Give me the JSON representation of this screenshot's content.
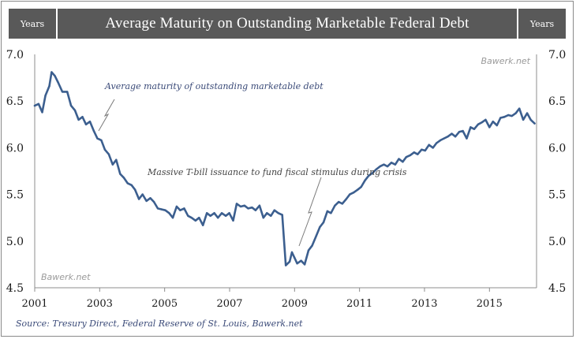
{
  "header": {
    "title": "Average Maturity on Outstanding Marketable Federal Debt",
    "left_unit": "Years",
    "right_unit": "Years"
  },
  "watermark": "Bawerk.net",
  "source": "Source: Tresury Direct, Federal Reserve of St. Louis, Bawerk.net",
  "chart_data": {
    "type": "line",
    "title": "Average Maturity on Outstanding Marketable Federal Debt",
    "ylabel": "Years",
    "ylim": [
      4.5,
      7.0
    ],
    "xlim": [
      2001.0,
      2016.45
    ],
    "yticks": [
      "4.5",
      "5.0",
      "5.5",
      "6.0",
      "6.5",
      "7.0"
    ],
    "xticks": [
      "2001",
      "2003",
      "2005",
      "2007",
      "2009",
      "2011",
      "2013",
      "2015"
    ],
    "grid": false,
    "series": [
      {
        "name": "Average maturity of outstanding marketable debt",
        "color": "#3c5f8f",
        "x": [
          2001.0,
          2001.12,
          2001.23,
          2001.33,
          2001.45,
          2001.52,
          2001.62,
          2001.72,
          2001.85,
          2002.0,
          2002.12,
          2002.24,
          2002.35,
          2002.47,
          2002.58,
          2002.7,
          2002.82,
          2002.93,
          2003.05,
          2003.16,
          2003.28,
          2003.4,
          2003.51,
          2003.63,
          2003.74,
          2003.86,
          2003.98,
          2004.09,
          2004.21,
          2004.32,
          2004.44,
          2004.56,
          2004.67,
          2004.79,
          2004.9,
          2005.02,
          2005.14,
          2005.25,
          2005.37,
          2005.48,
          2005.6,
          2005.72,
          2005.83,
          2005.95,
          2006.06,
          2006.18,
          2006.3,
          2006.41,
          2006.53,
          2006.64,
          2006.76,
          2006.88,
          2006.99,
          2007.11,
          2007.22,
          2007.34,
          2007.46,
          2007.57,
          2007.69,
          2007.8,
          2007.92,
          2008.04,
          2008.15,
          2008.27,
          2008.38,
          2008.5,
          2008.62,
          2008.73,
          2008.85,
          2008.92,
          2009.0,
          2009.08,
          2009.2,
          2009.31,
          2009.43,
          2009.54,
          2009.66,
          2009.78,
          2009.89,
          2010.01,
          2010.12,
          2010.24,
          2010.36,
          2010.47,
          2010.59,
          2010.7,
          2010.82,
          2010.94,
          2011.05,
          2011.17,
          2011.28,
          2011.4,
          2011.52,
          2011.63,
          2011.75,
          2011.86,
          2011.98,
          2012.1,
          2012.21,
          2012.33,
          2012.44,
          2012.56,
          2012.68,
          2012.79,
          2012.91,
          2013.02,
          2013.14,
          2013.26,
          2013.37,
          2013.49,
          2013.6,
          2013.72,
          2013.84,
          2013.95,
          2014.07,
          2014.18,
          2014.3,
          2014.42,
          2014.53,
          2014.65,
          2014.76,
          2014.88,
          2015.0,
          2015.11,
          2015.23,
          2015.34,
          2015.46,
          2015.58,
          2015.69,
          2015.81,
          2015.92,
          2016.04,
          2016.16,
          2016.27,
          2016.39
        ],
        "values": [
          6.45,
          6.47,
          6.38,
          6.56,
          6.66,
          6.81,
          6.77,
          6.7,
          6.6,
          6.6,
          6.45,
          6.4,
          6.3,
          6.33,
          6.25,
          6.28,
          6.18,
          6.1,
          6.08,
          5.98,
          5.93,
          5.82,
          5.87,
          5.72,
          5.68,
          5.62,
          5.6,
          5.55,
          5.45,
          5.5,
          5.43,
          5.46,
          5.42,
          5.35,
          5.34,
          5.33,
          5.3,
          5.25,
          5.37,
          5.33,
          5.35,
          5.27,
          5.25,
          5.22,
          5.25,
          5.17,
          5.3,
          5.27,
          5.3,
          5.25,
          5.3,
          5.27,
          5.3,
          5.22,
          5.4,
          5.37,
          5.38,
          5.35,
          5.36,
          5.33,
          5.38,
          5.25,
          5.3,
          5.27,
          5.33,
          5.3,
          5.28,
          4.74,
          4.78,
          4.88,
          4.82,
          4.76,
          4.79,
          4.75,
          4.9,
          4.95,
          5.05,
          5.15,
          5.2,
          5.32,
          5.3,
          5.38,
          5.42,
          5.4,
          5.45,
          5.5,
          5.52,
          5.55,
          5.58,
          5.65,
          5.7,
          5.73,
          5.77,
          5.8,
          5.82,
          5.8,
          5.84,
          5.82,
          5.88,
          5.85,
          5.9,
          5.92,
          5.95,
          5.93,
          5.98,
          5.97,
          6.03,
          6.0,
          6.05,
          6.08,
          6.1,
          6.12,
          6.15,
          6.12,
          6.17,
          6.18,
          6.1,
          6.22,
          6.2,
          6.25,
          6.27,
          6.3,
          6.22,
          6.28,
          6.24,
          6.32,
          6.33,
          6.35,
          6.34,
          6.37,
          6.42,
          6.3,
          6.37,
          6.3,
          6.26
        ]
      }
    ],
    "annotations": [
      "Average maturity of outstanding marketable debt",
      "Massive T-bill issuance to fund fiscal stimulus during crisis"
    ]
  }
}
